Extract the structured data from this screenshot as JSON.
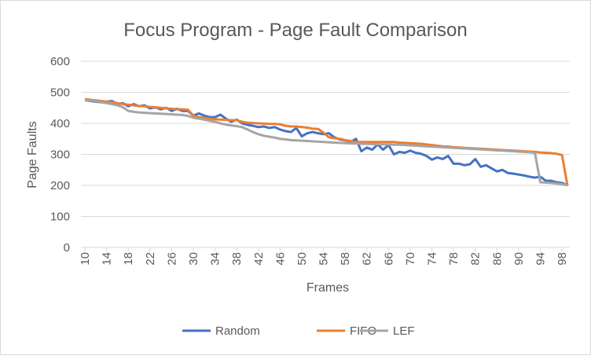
{
  "chart_data": {
    "type": "line",
    "title": "Focus Program - Page Fault Comparison",
    "x_label": "Frames",
    "y_label": "Page Faults",
    "x": [
      10,
      11,
      12,
      13,
      14,
      15,
      16,
      17,
      18,
      19,
      20,
      21,
      22,
      23,
      24,
      25,
      26,
      27,
      28,
      29,
      30,
      31,
      32,
      33,
      34,
      35,
      36,
      37,
      38,
      39,
      40,
      41,
      42,
      43,
      44,
      45,
      46,
      47,
      48,
      49,
      50,
      51,
      52,
      53,
      54,
      55,
      56,
      57,
      58,
      59,
      60,
      61,
      62,
      63,
      64,
      65,
      66,
      67,
      68,
      69,
      70,
      71,
      72,
      73,
      74,
      75,
      76,
      77,
      78,
      79,
      80,
      81,
      82,
      83,
      84,
      85,
      86,
      87,
      88,
      89,
      90,
      91,
      92,
      93,
      94,
      95,
      96,
      97,
      98,
      99
    ],
    "xlim": [
      10,
      99
    ],
    "xticks": [
      10,
      14,
      18,
      22,
      26,
      30,
      34,
      38,
      42,
      46,
      50,
      54,
      58,
      62,
      66,
      70,
      74,
      78,
      82,
      86,
      90,
      94,
      98
    ],
    "ylim": [
      0,
      600
    ],
    "yticks": [
      0,
      100,
      200,
      300,
      400,
      500,
      600
    ],
    "grid": true,
    "legend": "bottom",
    "series": [
      {
        "name": "Random",
        "color": "#4472c4",
        "values": [
          475,
          472,
          470,
          468,
          470,
          472,
          462,
          465,
          455,
          462,
          455,
          458,
          448,
          452,
          445,
          450,
          440,
          447,
          440,
          440,
          425,
          432,
          425,
          420,
          420,
          428,
          415,
          405,
          412,
          400,
          395,
          392,
          388,
          390,
          385,
          388,
          380,
          375,
          372,
          385,
          358,
          368,
          372,
          368,
          365,
          368,
          355,
          348,
          345,
          340,
          350,
          310,
          322,
          315,
          332,
          315,
          330,
          300,
          308,
          305,
          312,
          305,
          302,
          295,
          283,
          290,
          285,
          295,
          270,
          270,
          265,
          268,
          285,
          260,
          265,
          255,
          245,
          250,
          240,
          238,
          235,
          232,
          228,
          225,
          228,
          215,
          215,
          210,
          208,
          200
        ]
      },
      {
        "name": "FIFO",
        "color": "#ed7d31",
        "values": [
          478,
          476,
          474,
          472,
          470,
          468,
          465,
          462,
          460,
          458,
          456,
          455,
          453,
          452,
          450,
          448,
          447,
          446,
          445,
          444,
          425,
          420,
          418,
          415,
          413,
          412,
          411,
          410,
          410,
          405,
          402,
          401,
          400,
          399,
          398,
          398,
          397,
          392,
          390,
          390,
          388,
          386,
          383,
          382,
          370,
          355,
          352,
          350,
          346,
          343,
          340,
          340,
          340,
          340,
          340,
          340,
          340,
          340,
          338,
          337,
          336,
          335,
          334,
          332,
          330,
          328,
          326,
          325,
          323,
          322,
          321,
          320,
          319,
          318,
          317,
          316,
          315,
          314,
          313,
          312,
          311,
          310,
          309,
          308,
          306,
          305,
          304,
          302,
          298,
          200
        ]
      },
      {
        "name": "LEF",
        "color": "#a5a5a5",
        "values": [
          475,
          474,
          472,
          468,
          465,
          462,
          458,
          452,
          440,
          437,
          435,
          434,
          433,
          432,
          431,
          430,
          429,
          428,
          427,
          424,
          418,
          415,
          412,
          408,
          405,
          400,
          396,
          393,
          391,
          388,
          380,
          372,
          365,
          360,
          357,
          354,
          350,
          348,
          346,
          345,
          344,
          343,
          342,
          341,
          340,
          339,
          338,
          337,
          336,
          335,
          335,
          334,
          334,
          333,
          333,
          332,
          332,
          331,
          331,
          330,
          329,
          328,
          327,
          326,
          325,
          324,
          323,
          322,
          321,
          320,
          319,
          318,
          317,
          316,
          315,
          314,
          313,
          312,
          311,
          310,
          309,
          308,
          307,
          305,
          210,
          209,
          208,
          206,
          204,
          200
        ]
      }
    ]
  }
}
